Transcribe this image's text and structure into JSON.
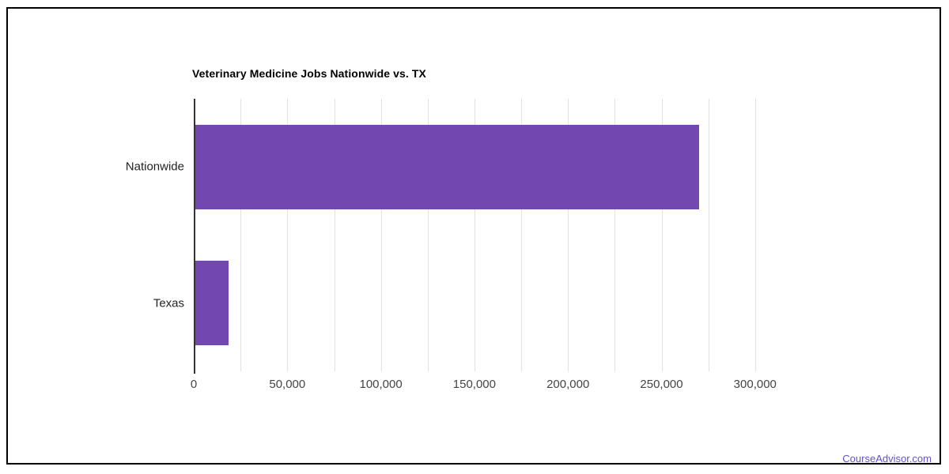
{
  "page": {
    "background": "#ffffff",
    "frame_border_color": "#000000"
  },
  "chart_data": {
    "type": "bar",
    "orientation": "horizontal",
    "title": "Veterinary Medicine Jobs Nationwide vs. TX",
    "categories": [
      "Nationwide",
      "Texas"
    ],
    "values": [
      270000,
      18600
    ],
    "xlabel": "",
    "ylabel": "",
    "xlim": [
      0,
      325000
    ],
    "xticks": [
      0,
      50000,
      100000,
      150000,
      200000,
      250000,
      300000
    ],
    "xtick_labels": [
      "0",
      "50,000",
      "100,000",
      "150,000",
      "200,000",
      "250,000",
      "300,000"
    ],
    "gridline_step": 25000,
    "grid": true,
    "legend": "none",
    "bar_color": "#7248b0",
    "gridline_color": "#e2e2e2",
    "baseline_color": "#333333",
    "title_color": "#000000",
    "category_label_color": "#222222",
    "tick_label_color": "#444444"
  },
  "footer": {
    "brand_label": "CourseAdvisor.com",
    "brand_color": "#6452c8"
  }
}
